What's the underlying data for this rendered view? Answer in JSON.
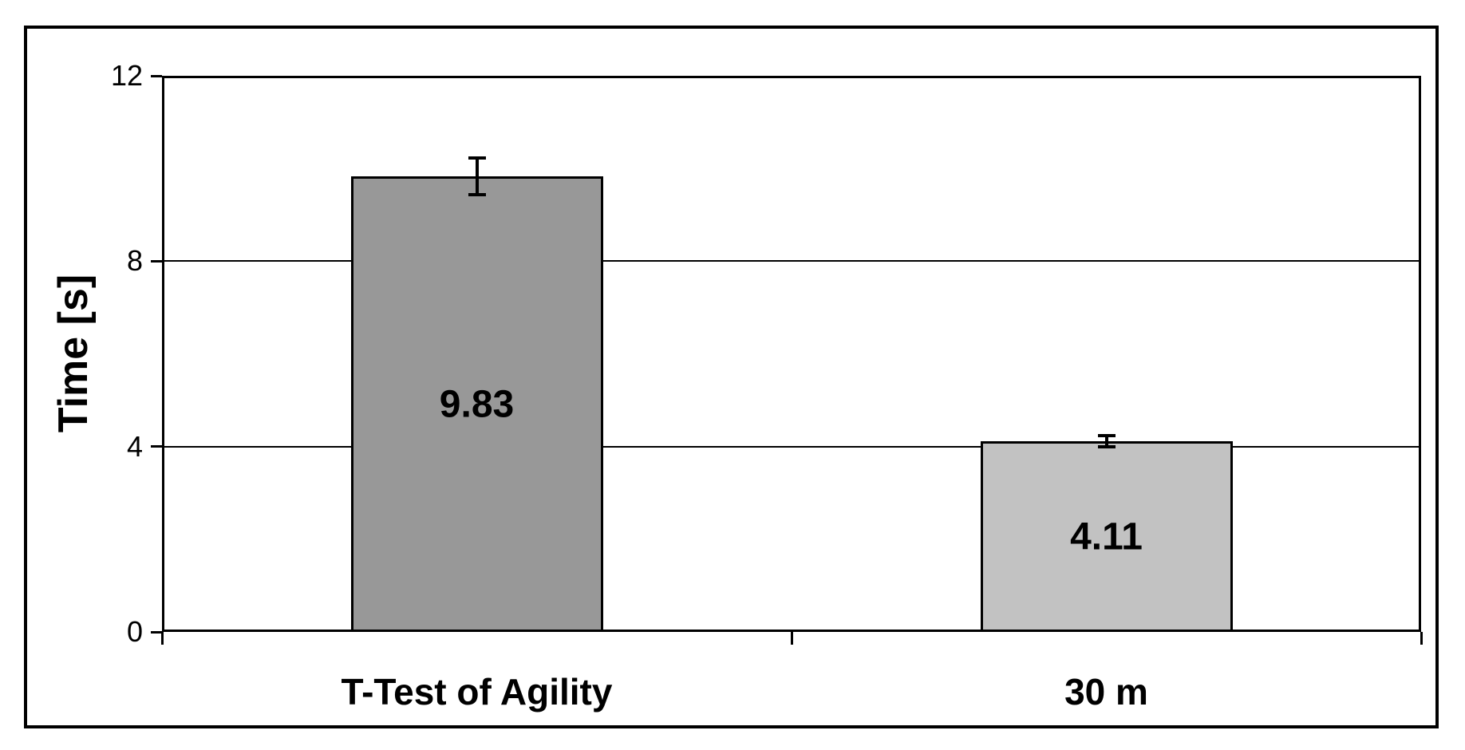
{
  "chart_data": {
    "type": "bar",
    "title": "",
    "ylabel": "Time [s]",
    "xlabel": "",
    "ylim": [
      0,
      12
    ],
    "yticks": [
      12,
      8,
      4,
      0
    ],
    "gridline_values": [
      8,
      4
    ],
    "grid": true,
    "legend_position": "none",
    "categories": [
      "T-Test of Agility",
      "30 m"
    ],
    "series": [
      {
        "name": "Time",
        "values": [
          9.83,
          4.11
        ],
        "value_labels": [
          "9.83",
          "4.11"
        ],
        "errors": [
          0.4,
          0.12
        ],
        "bar_fills": [
          "#989898",
          "#C2C2C2"
        ]
      }
    ],
    "bar_border_color": "#000000",
    "axis_color": "#000000",
    "background_color": "#FFFFFF"
  }
}
